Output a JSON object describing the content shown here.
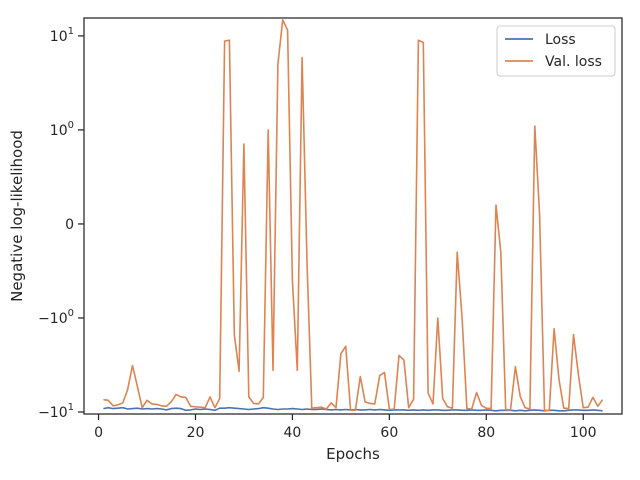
{
  "chart_data": {
    "type": "line",
    "xlabel": "Epochs",
    "ylabel": "Negative log-likelihood",
    "xlim": [
      -3,
      108
    ],
    "yscale": "symlog",
    "ylim": [
      -10.5,
      15.5
    ],
    "x_ticks": [
      0,
      20,
      40,
      60,
      80,
      100
    ],
    "x_tick_labels": [
      "0",
      "20",
      "40",
      "60",
      "80",
      "100"
    ],
    "y_ticks": [
      -10,
      -1,
      0,
      1,
      10
    ],
    "y_tick_labels": [
      {
        "base": "−10",
        "exp": "1"
      },
      {
        "base": "−10",
        "exp": "0"
      },
      {
        "base": "0",
        "exp": ""
      },
      {
        "base": "10",
        "exp": "0"
      },
      {
        "base": "10",
        "exp": "1"
      }
    ],
    "grid": false,
    "legend_position": "top-right",
    "series": [
      {
        "name": "Loss",
        "color": "#4c72b0",
        "x": [
          1,
          2,
          3,
          4,
          5,
          6,
          7,
          8,
          9,
          10,
          11,
          12,
          13,
          14,
          15,
          16,
          17,
          18,
          19,
          20,
          21,
          22,
          23,
          24,
          25,
          26,
          27,
          28,
          29,
          30,
          31,
          32,
          33,
          34,
          35,
          36,
          37,
          38,
          39,
          40,
          41,
          42,
          43,
          44,
          45,
          46,
          47,
          48,
          49,
          50,
          51,
          52,
          53,
          54,
          55,
          56,
          57,
          58,
          59,
          60,
          61,
          62,
          63,
          64,
          65,
          66,
          67,
          68,
          69,
          70,
          71,
          72,
          73,
          74,
          75,
          76,
          77,
          78,
          79,
          80,
          81,
          82,
          83,
          84,
          85,
          86,
          87,
          88,
          89,
          90,
          91,
          92,
          93,
          94,
          95,
          96,
          97,
          98,
          99,
          100,
          101,
          102,
          103,
          104
        ],
        "y": [
          -9.2,
          -9.0,
          -9.2,
          -9.1,
          -9.0,
          -9.3,
          -9.2,
          -9.1,
          -9.3,
          -9.2,
          -9.3,
          -9.2,
          -9.3,
          -9.5,
          -9.2,
          -9.1,
          -9.2,
          -9.6,
          -9.5,
          -9.3,
          -9.4,
          -9.3,
          -9.4,
          -9.6,
          -9.1,
          -9.1,
          -9.0,
          -9.1,
          -9.2,
          -9.3,
          -9.4,
          -9.3,
          -9.2,
          -9.0,
          -9.1,
          -9.3,
          -9.4,
          -9.3,
          -9.3,
          -9.2,
          -9.3,
          -9.4,
          -9.3,
          -9.4,
          -9.4,
          -9.3,
          -9.4,
          -9.5,
          -9.4,
          -9.5,
          -9.4,
          -9.5,
          -9.4,
          -9.5,
          -9.5,
          -9.4,
          -9.5,
          -9.4,
          -9.5,
          -9.6,
          -9.5,
          -9.5,
          -9.5,
          -9.6,
          -9.5,
          -9.6,
          -9.5,
          -9.6,
          -9.5,
          -9.5,
          -9.6,
          -9.6,
          -9.5,
          -9.5,
          -9.6,
          -9.6,
          -9.5,
          -9.6,
          -9.6,
          -9.5,
          -9.6,
          -9.7,
          -9.6,
          -9.6,
          -9.6,
          -9.7,
          -9.6,
          -9.7,
          -9.6,
          -9.5,
          -9.6,
          -9.7,
          -9.6,
          -9.6,
          -9.7,
          -9.7,
          -9.6,
          -9.5,
          -9.5,
          -9.6,
          -9.6,
          -9.5,
          -9.6,
          -9.7
        ]
      },
      {
        "name": "Val. loss",
        "color": "#dd8452",
        "x": [
          1,
          2,
          3,
          4,
          5,
          6,
          7,
          8,
          9,
          10,
          11,
          12,
          13,
          14,
          15,
          16,
          17,
          18,
          19,
          20,
          21,
          22,
          23,
          24,
          25,
          26,
          27,
          28,
          29,
          30,
          31,
          32,
          33,
          34,
          35,
          36,
          37,
          38,
          39,
          40,
          41,
          42,
          43,
          44,
          45,
          46,
          47,
          48,
          49,
          50,
          51,
          52,
          53,
          54,
          55,
          56,
          57,
          58,
          59,
          60,
          61,
          62,
          63,
          64,
          65,
          66,
          67,
          68,
          69,
          70,
          71,
          72,
          73,
          74,
          75,
          76,
          77,
          78,
          79,
          80,
          81,
          82,
          83,
          84,
          85,
          86,
          87,
          88,
          89,
          90,
          91,
          92,
          93,
          94,
          95,
          96,
          97,
          98,
          99,
          100,
          101,
          102,
          103,
          104
        ],
        "y": [
          -7.4,
          -7.5,
          -8.6,
          -8.4,
          -8.0,
          -5.8,
          -3.2,
          -5.3,
          -9.0,
          -7.5,
          -8.2,
          -8.3,
          -8.6,
          -8.7,
          -7.8,
          -6.5,
          -6.9,
          -7.0,
          -8.7,
          -8.8,
          -8.9,
          -9.0,
          -6.9,
          -9.0,
          -7.2,
          8.8,
          9.0,
          -1.5,
          -3.7,
          0.85,
          -6.9,
          -8.1,
          -8.2,
          -7.0,
          1.0,
          -3.6,
          5.0,
          14.8,
          11.5,
          -0.6,
          -3.6,
          5.9,
          -0.4,
          -9.1,
          -9.0,
          -8.9,
          -9.3,
          -8.0,
          -9.0,
          -2.4,
          -2.0,
          -9.6,
          -9.6,
          -4.2,
          -7.8,
          -8.1,
          -8.2,
          -4.1,
          -3.8,
          -9.4,
          -9.3,
          -2.5,
          -2.8,
          -9.0,
          -7.3,
          9.0,
          8.5,
          -6.3,
          -8.2,
          -1.0,
          -7.2,
          -8.8,
          -9.1,
          -0.3,
          -1.0,
          -9.2,
          -9.3,
          -6.2,
          -8.5,
          -9.1,
          -9.2,
          0.2,
          -0.3,
          -9.4,
          -9.5,
          -3.3,
          -6.8,
          -9.0,
          -9.3,
          1.1,
          0.1,
          -9.6,
          -9.6,
          -1.3,
          -4.5,
          -9.1,
          -9.2,
          -1.5,
          -4.0,
          -9.0,
          -8.9,
          -7.0,
          -8.7,
          -7.4
        ]
      }
    ]
  }
}
